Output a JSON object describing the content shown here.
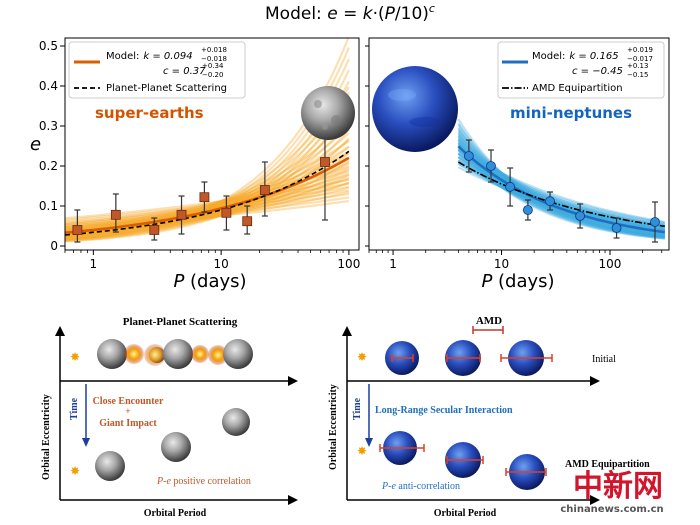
{
  "title": "Model: e = k·(P/10)^c",
  "title_parts": {
    "prefix": "Model: ",
    "e": "e",
    "eq": " = ",
    "k": "k",
    "mid": "·(",
    "P": "P",
    "end": "/10)",
    "c": "c"
  },
  "colors": {
    "orange": "#f5a623",
    "orange_dark": "#d95f02",
    "orange_text": "#d35400",
    "blue": "#3aa8e0",
    "blue_dark": "#1f6fc0",
    "blue_text": "#1565c0",
    "marker_orange": "#c0582a",
    "marker_blue": "#2f8fd8"
  },
  "chart_data": [
    {
      "type": "scatter",
      "panel": "left",
      "label": "super-earths",
      "xscale": "log",
      "xlim": [
        0.6,
        120
      ],
      "ylim": [
        -0.01,
        0.52
      ],
      "xticks": [
        1,
        10,
        100
      ],
      "xtick_labels": [
        "1",
        "10",
        "100"
      ],
      "yticks": [
        0,
        0.1,
        0.2,
        0.3,
        0.4,
        0.5
      ],
      "ytick_labels": [
        "0",
        "0.1",
        "0.2",
        "0.3",
        "0.4",
        "0.5"
      ],
      "ylabel": "e",
      "xlabel_italic": "P",
      "xlabel_rest": " (days)",
      "points": [
        {
          "x": 0.75,
          "y": 0.04,
          "lo": 0.01,
          "hi": 0.09
        },
        {
          "x": 1.5,
          "y": 0.078,
          "lo": 0.035,
          "hi": 0.13
        },
        {
          "x": 3.0,
          "y": 0.04,
          "lo": 0.015,
          "hi": 0.07
        },
        {
          "x": 4.9,
          "y": 0.078,
          "lo": 0.03,
          "hi": 0.125
        },
        {
          "x": 7.4,
          "y": 0.122,
          "lo": 0.085,
          "hi": 0.16
        },
        {
          "x": 11,
          "y": 0.083,
          "lo": 0.04,
          "hi": 0.125
        },
        {
          "x": 16,
          "y": 0.062,
          "lo": 0.03,
          "hi": 0.1
        },
        {
          "x": 22,
          "y": 0.14,
          "lo": 0.075,
          "hi": 0.21
        },
        {
          "x": 65,
          "y": 0.21,
          "lo": 0.065,
          "hi": 0.36
        }
      ],
      "model": {
        "k": 0.094,
        "c": 0.37,
        "xrange": [
          0.6,
          100
        ]
      },
      "comparison": {
        "k": 0.09,
        "c": 0.42,
        "xrange": [
          0.6,
          100
        ],
        "style": "dashed"
      },
      "legend": {
        "model_prefix": "Model:",
        "k_text": "k = 0.094",
        "k_sup": "+0.018",
        "k_sub": "−0.018",
        "c_text": "c = 0.37",
        "c_sup": "+0.34",
        "c_sub": "−0.20",
        "comparison": "Planet-Planet Scattering"
      }
    },
    {
      "type": "scatter",
      "panel": "right",
      "label": "mini-neptunes",
      "xscale": "log",
      "xlim": [
        0.6,
        350
      ],
      "ylim": [
        -0.01,
        0.52
      ],
      "xticks": [
        1,
        10,
        100
      ],
      "xtick_labels": [
        "1",
        "10",
        "100"
      ],
      "xlabel_italic": "P",
      "xlabel_rest": " (days)",
      "points": [
        {
          "x": 5,
          "y": 0.225,
          "lo": 0.185,
          "hi": 0.265
        },
        {
          "x": 8,
          "y": 0.2,
          "lo": 0.16,
          "hi": 0.24
        },
        {
          "x": 12,
          "y": 0.148,
          "lo": 0.1,
          "hi": 0.195
        },
        {
          "x": 17.5,
          "y": 0.09,
          "lo": 0.065,
          "hi": 0.115
        },
        {
          "x": 28,
          "y": 0.112,
          "lo": 0.09,
          "hi": 0.135
        },
        {
          "x": 53,
          "y": 0.075,
          "lo": 0.045,
          "hi": 0.105
        },
        {
          "x": 115,
          "y": 0.045,
          "lo": 0.02,
          "hi": 0.07
        },
        {
          "x": 260,
          "y": 0.06,
          "lo": 0.01,
          "hi": 0.11
        }
      ],
      "model": {
        "k": 0.165,
        "c": -0.45,
        "xrange": [
          4,
          320
        ]
      },
      "comparison": {
        "k": 0.155,
        "c": -0.33,
        "xrange": [
          4,
          320
        ],
        "style": "dashdot"
      },
      "legend": {
        "model_prefix": "Model:",
        "k_text": "k = 0.165",
        "k_sup": "+0.019",
        "k_sub": "−0.017",
        "c_text": "c = −0.45",
        "c_sup": "+0.13",
        "c_sub": "−0.15",
        "comparison": "AMD Equipartition"
      }
    }
  ],
  "diagram": {
    "left": {
      "title": "Planet-Planet Scattering",
      "ylabel": "Orbital Eccentricity",
      "xlabel": "Orbital Period",
      "time": "Time",
      "event_line1": "Close Encounter",
      "event_plus": "+",
      "event_line2": "Giant Impact",
      "corr_italic": "P-e",
      "corr_rest": " positive correlation"
    },
    "right": {
      "amd": "AMD",
      "initial": "Initial",
      "ylabel": "Orbital Eccentricity",
      "xlabel": "Orbital Period",
      "time": "Time",
      "interaction": "Long-Range Secular Interaction",
      "corr_italic": "P-e",
      "corr_rest": " anti-correlation",
      "final": "AMD Equipartition"
    }
  },
  "watermark": {
    "cn": "中新网",
    "url": "chinanews.com.cn"
  }
}
